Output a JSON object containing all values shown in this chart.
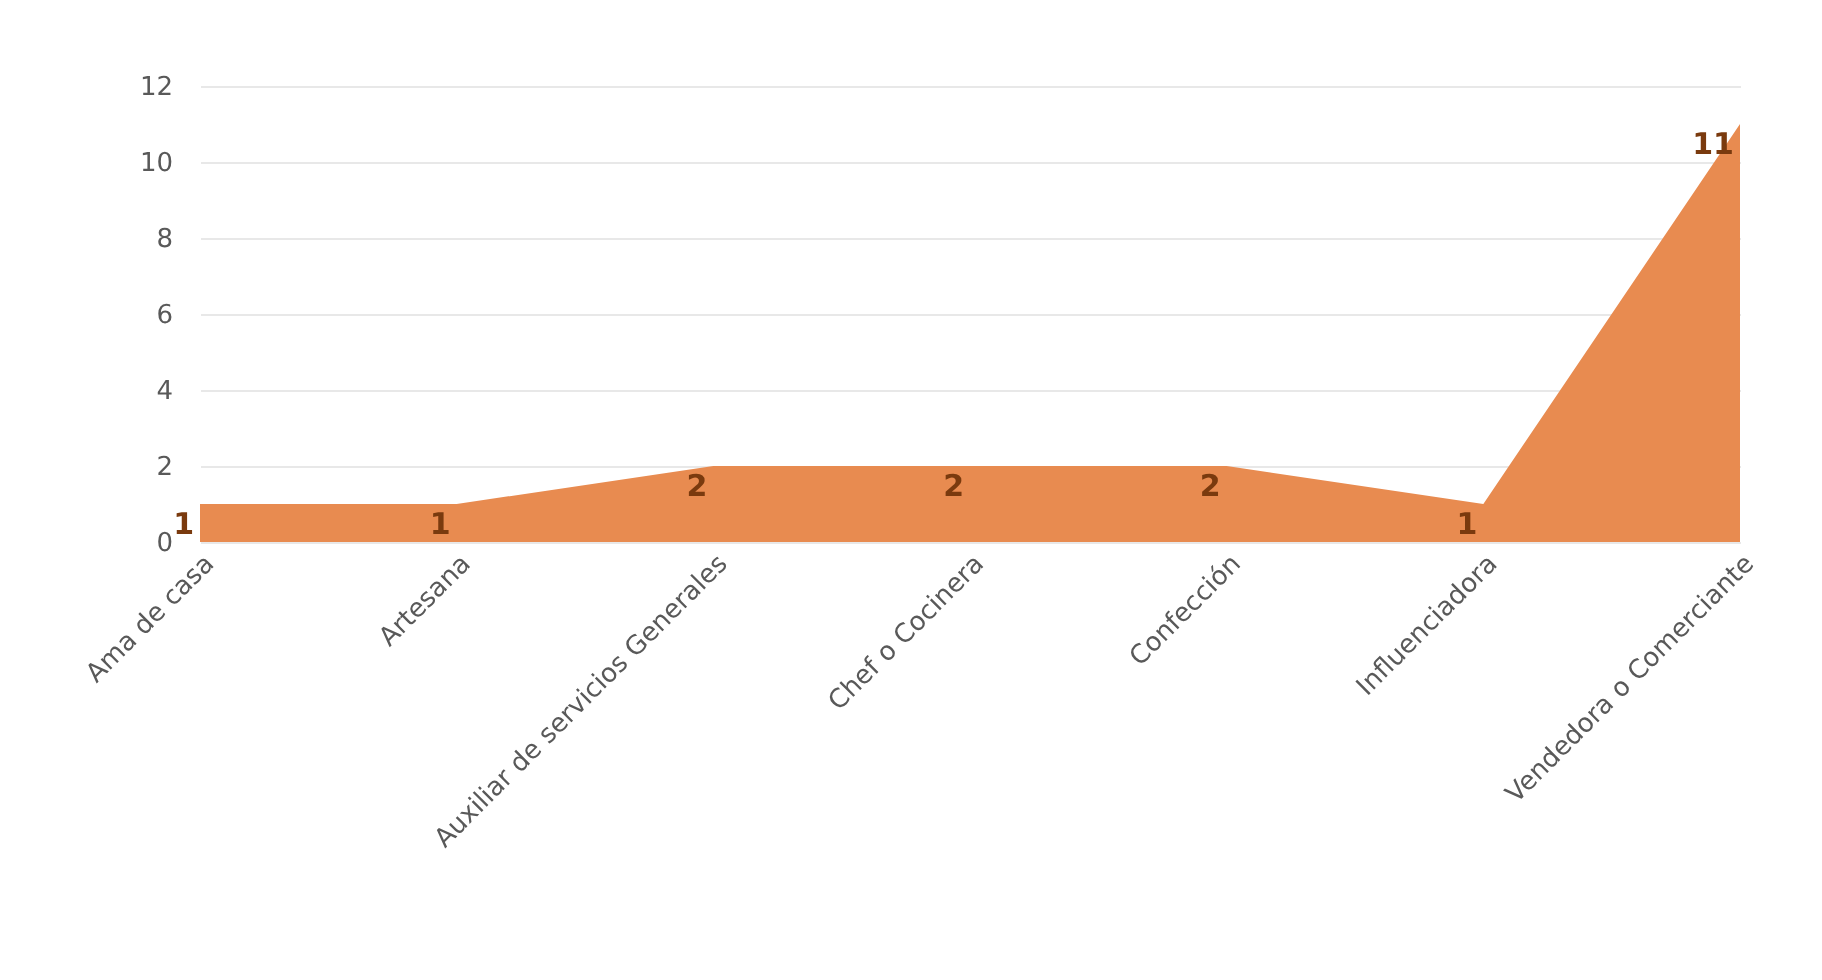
{
  "chart_data": {
    "type": "area",
    "categories": [
      "Ama de casa",
      "Artesana",
      "Auxiliar  de servicios Generales",
      "Chef o Cocinera",
      "Confección",
      "Influenciadora",
      "Vendedora o Comerciante"
    ],
    "values": [
      1,
      1,
      2,
      2,
      2,
      1,
      11
    ],
    "color": "#e88b50",
    "ylim": [
      0,
      12
    ],
    "yticks": [
      0,
      2,
      4,
      6,
      8,
      10,
      12
    ],
    "grid": "y",
    "data_labels": true
  }
}
